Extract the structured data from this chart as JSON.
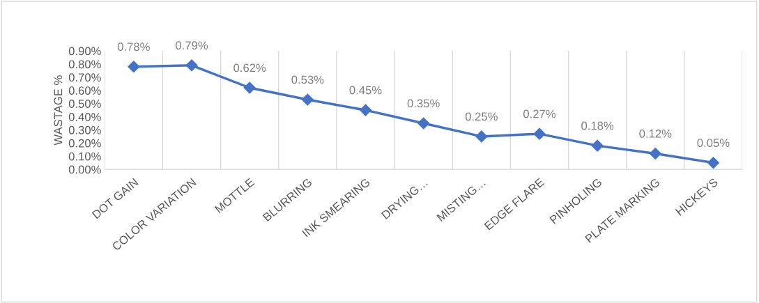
{
  "chart_data": {
    "type": "line",
    "ylabel": "WASTAGE %",
    "categories": [
      "DOT GAIN",
      "COLOR VARIATION",
      "MOTTLE",
      "BLURRING",
      "INK SMEARING",
      "DRYING…",
      "MISTING…",
      "EDGE FLARE",
      "PINHOLING",
      "PLATE MARKING",
      "HICKEYS"
    ],
    "series": [
      {
        "color": "#4472c4",
        "values": [
          0.78,
          0.79,
          0.62,
          0.53,
          0.45,
          0.35,
          0.25,
          0.27,
          0.18,
          0.12,
          0.05
        ],
        "value_labels": [
          "0.78%",
          "0.79%",
          "0.62%",
          "0.53%",
          "0.45%",
          "0.35%",
          "0.25%",
          "0.27%",
          "0.18%",
          "0.12%",
          "0.05%"
        ]
      }
    ],
    "ylim": [
      0,
      0.9
    ],
    "yticks": [
      {
        "value": 0,
        "label": "0.00%"
      },
      {
        "value": 0.1,
        "label": "0.10%"
      },
      {
        "value": 0.2,
        "label": "0.20%"
      },
      {
        "value": 0.3,
        "label": "0.30%"
      },
      {
        "value": 0.4,
        "label": "0.40%"
      },
      {
        "value": 0.5,
        "label": "0.50%"
      },
      {
        "value": 0.6,
        "label": "0.60%"
      },
      {
        "value": 0.7,
        "label": "0.70%"
      },
      {
        "value": 0.8,
        "label": "0.80%"
      },
      {
        "value": 0.9,
        "label": "0.90%"
      }
    ],
    "grid": "x",
    "marker": "diamond",
    "line_style": "solid"
  }
}
